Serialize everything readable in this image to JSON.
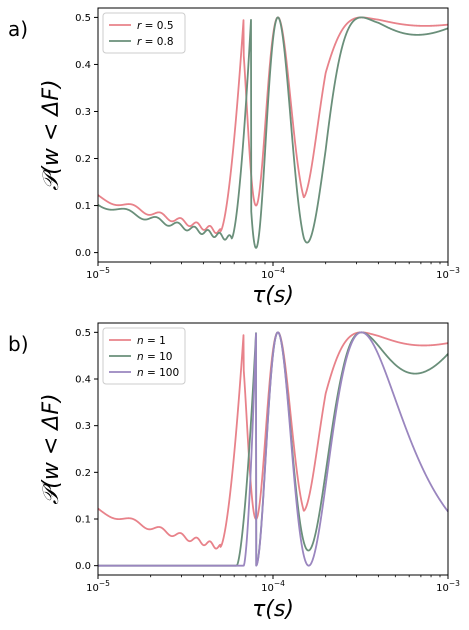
{
  "chart_data": [
    {
      "type": "line",
      "panel_label": "a)",
      "xlabel": "τ(s)",
      "ylabel": "𝒫(w < ΔF)",
      "x_scale": "log",
      "xlim": [
        1e-05,
        0.001
      ],
      "ylim": [
        -0.02,
        0.52
      ],
      "x_ticks": [
        {
          "value": 1e-05,
          "base": "10",
          "exp": "−5"
        },
        {
          "value": 0.0001,
          "base": "10",
          "exp": "−4"
        },
        {
          "value": 0.001,
          "base": "10",
          "exp": "−3"
        }
      ],
      "y_ticks": [
        "0.0",
        "0.1",
        "0.2",
        "0.3",
        "0.4",
        "0.5"
      ],
      "legend_position": "top-left",
      "series": [
        {
          "name": "r = 0.5",
          "color": "#e8828a",
          "floor_start": 0.12,
          "floor_end": 0.045,
          "rise_start": 5e-05,
          "envelope_min": [
            [
              6.8e-05,
              0.1
            ],
            [
              0.00015,
              0.1
            ],
            [
              0.0002,
              0.32
            ],
            [
              0.0004,
              0.45
            ],
            [
              0.001,
              0.48
            ]
          ]
        },
        {
          "name": "r = 0.8",
          "color": "#6a8f7a",
          "floor_start": 0.105,
          "floor_end": 0.03,
          "rise_start": 5.8e-05,
          "envelope_min": [
            [
              7.5e-05,
              0.01
            ],
            [
              0.00015,
              0.01
            ],
            [
              0.0002,
              0.07
            ],
            [
              0.0003,
              0.26
            ],
            [
              0.0004,
              0.38
            ],
            [
              0.001,
              0.47
            ]
          ]
        }
      ]
    },
    {
      "type": "line",
      "panel_label": "b)",
      "xlabel": "τ(s)",
      "ylabel": "𝒫(w < ΔF)",
      "x_scale": "log",
      "xlim": [
        1e-05,
        0.001
      ],
      "ylim": [
        -0.02,
        0.52
      ],
      "x_ticks": [
        {
          "value": 1e-05,
          "base": "10",
          "exp": "−5"
        },
        {
          "value": 0.0001,
          "base": "10",
          "exp": "−4"
        },
        {
          "value": 0.001,
          "base": "10",
          "exp": "−3"
        }
      ],
      "y_ticks": [
        "0.0",
        "0.1",
        "0.2",
        "0.3",
        "0.4",
        "0.5"
      ],
      "legend_position": "top-left",
      "series": [
        {
          "name": "n = 1",
          "color": "#e8828a",
          "floor_start": 0.12,
          "floor_end": 0.04,
          "rise_start": 5e-05,
          "envelope_min": [
            [
              6.8e-05,
              0.1
            ],
            [
              0.00015,
              0.1
            ],
            [
              0.0002,
              0.3
            ],
            [
              0.0004,
              0.42
            ],
            [
              0.001,
              0.47
            ]
          ]
        },
        {
          "name": "n = 10",
          "color": "#6a8f7a",
          "floor_start": 0.0,
          "floor_end": 0.0,
          "rise_start": 6.2e-05,
          "envelope_min": [
            [
              8e-05,
              0.0
            ],
            [
              0.00015,
              0.03
            ],
            [
              0.00025,
              0.05
            ],
            [
              0.0004,
              0.2
            ],
            [
              0.001,
              0.44
            ]
          ]
        },
        {
          "name": "n = 100",
          "color": "#9a86bf",
          "floor_start": 0.0,
          "floor_end": 0.0,
          "rise_start": 6.8e-05,
          "envelope_min": [
            [
              8e-05,
              0.0
            ],
            [
              0.001,
              0.0
            ]
          ]
        }
      ]
    }
  ]
}
